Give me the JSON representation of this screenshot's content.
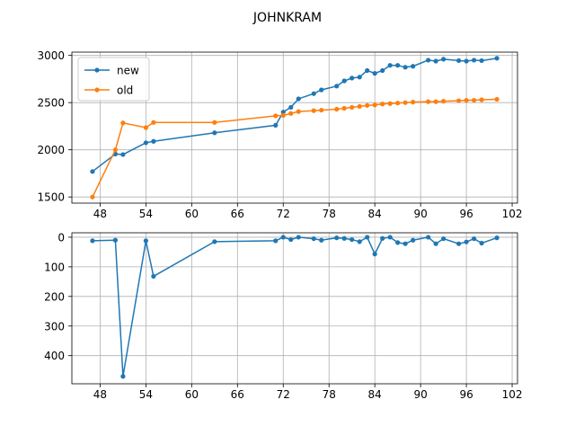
{
  "title": "JOHNKRAM",
  "colors": {
    "new": "#1f77b4",
    "old": "#ff7f0e",
    "grid": "#b0b0b0"
  },
  "chart_data": [
    {
      "type": "line",
      "title": "",
      "xlabel": "",
      "ylabel": "",
      "xlim": [
        44.3,
        102.7
      ],
      "ylim": [
        1435,
        3035
      ],
      "xticks": [
        48,
        54,
        60,
        66,
        72,
        78,
        84,
        90,
        96,
        102
      ],
      "yticks": [
        1500,
        2000,
        2500,
        3000
      ],
      "grid": true,
      "legend": "top-left",
      "series": [
        {
          "name": "new",
          "color": "#1f77b4",
          "x": [
            47,
            50,
            51,
            54,
            55,
            63,
            71,
            72,
            73,
            74,
            76,
            77,
            79,
            80,
            81,
            82,
            83,
            84,
            85,
            86,
            87,
            88,
            89,
            91,
            92,
            93,
            95,
            96,
            97,
            98,
            100
          ],
          "y": [
            1770,
            1955,
            1950,
            2075,
            2090,
            2180,
            2260,
            2400,
            2450,
            2540,
            2595,
            2635,
            2675,
            2730,
            2760,
            2770,
            2840,
            2810,
            2840,
            2895,
            2895,
            2875,
            2885,
            2950,
            2940,
            2960,
            2945,
            2940,
            2950,
            2945,
            2970
          ]
        },
        {
          "name": "old",
          "color": "#ff7f0e",
          "x": [
            47,
            50,
            51,
            54,
            55,
            63,
            71,
            72,
            73,
            74,
            76,
            77,
            79,
            80,
            81,
            82,
            83,
            84,
            85,
            86,
            87,
            88,
            89,
            91,
            92,
            93,
            95,
            96,
            97,
            98,
            100
          ],
          "y": [
            1500,
            2000,
            2285,
            2235,
            2290,
            2290,
            2360,
            2365,
            2385,
            2405,
            2415,
            2420,
            2430,
            2440,
            2450,
            2460,
            2470,
            2475,
            2485,
            2490,
            2495,
            2500,
            2505,
            2510,
            2510,
            2515,
            2520,
            2525,
            2525,
            2530,
            2535
          ]
        }
      ]
    },
    {
      "type": "line",
      "title": "",
      "xlabel": "",
      "ylabel": "",
      "xlim": [
        44.3,
        102.7
      ],
      "ylim": [
        495,
        -15
      ],
      "inverted_y": true,
      "xticks": [
        48,
        54,
        60,
        66,
        72,
        78,
        84,
        90,
        96,
        102
      ],
      "yticks": [
        0,
        100,
        200,
        300,
        400
      ],
      "grid": true,
      "series": [
        {
          "color": "#1f77b4",
          "x": [
            47,
            50,
            51,
            54,
            55,
            63,
            71,
            72,
            73,
            74,
            76,
            77,
            79,
            80,
            81,
            82,
            83,
            84,
            85,
            86,
            87,
            88,
            89,
            91,
            92,
            93,
            95,
            96,
            97,
            98,
            100
          ],
          "y": [
            12,
            10,
            470,
            12,
            132,
            15,
            12,
            0,
            8,
            0,
            5,
            10,
            2,
            4,
            8,
            15,
            0,
            57,
            4,
            0,
            18,
            22,
            10,
            0,
            22,
            5,
            22,
            16,
            5,
            20,
            2
          ]
        }
      ]
    }
  ]
}
